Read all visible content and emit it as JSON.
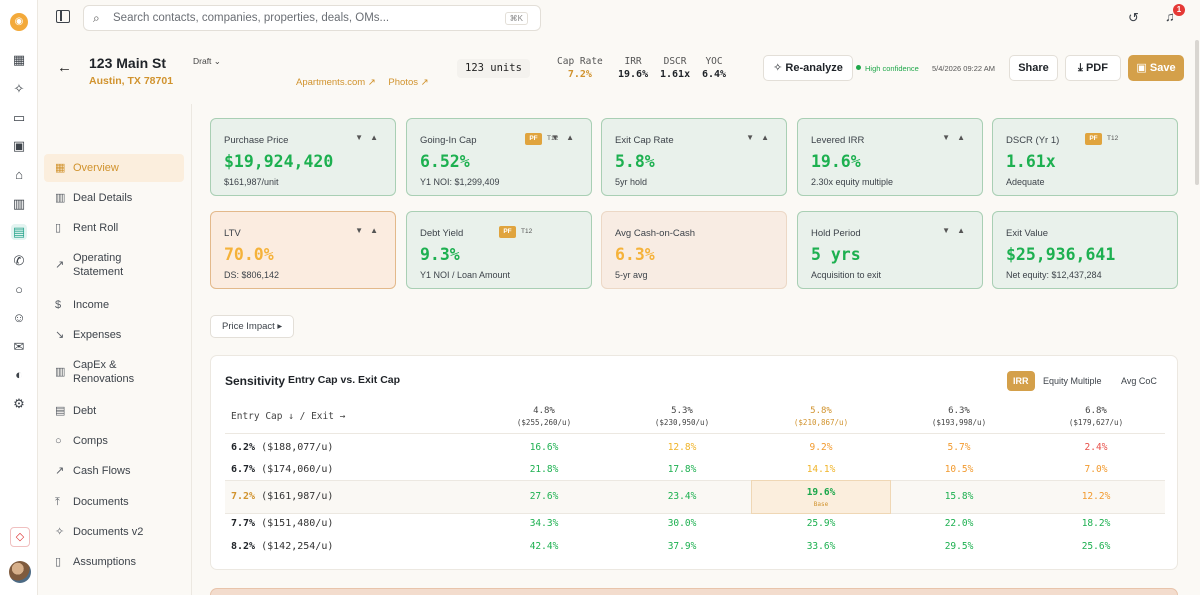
{
  "topbar": {
    "search_placeholder": "Search contacts, companies, properties, deals, OMs...",
    "search_shortcut": "⌘K",
    "notification_count": "1"
  },
  "property": {
    "name": "123 Main St",
    "address": "Austin, TX 78701",
    "status": "Draft",
    "links": [
      "Apartments.com ↗",
      "Photos ↗"
    ],
    "units": "123 units"
  },
  "header_kpis": [
    {
      "label": "Cap Rate",
      "value": "7.2%",
      "accent": true
    },
    {
      "label": "IRR",
      "value": "19.6%",
      "accent": false
    },
    {
      "label": "DSCR",
      "value": "1.61x",
      "accent": false
    },
    {
      "label": "YOC",
      "value": "6.4%",
      "accent": false
    }
  ],
  "actions": {
    "reanalyze": "Re-analyze",
    "confidence": "High confidence",
    "timestamp": "5/4/2026 09:22 AM",
    "share": "Share",
    "pdf": "PDF",
    "save": "Save"
  },
  "nav": [
    {
      "label": "Overview",
      "icon": "grid-icon",
      "active": true
    },
    {
      "label": "Deal Details",
      "icon": "building-icon"
    },
    {
      "label": "Rent Roll",
      "icon": "bar-chart-icon"
    },
    {
      "label": "Operating Statement",
      "icon": "trend-up-icon"
    },
    {
      "label": "Income",
      "icon": "dollar-icon"
    },
    {
      "label": "Expenses",
      "icon": "trend-down-icon"
    },
    {
      "label": "CapEx & Renovations",
      "icon": "building-icon"
    },
    {
      "label": "Debt",
      "icon": "bank-icon"
    },
    {
      "label": "Comps",
      "icon": "search-icon"
    },
    {
      "label": "Cash Flows",
      "icon": "trend-up-icon"
    },
    {
      "label": "Documents",
      "icon": "upload-icon"
    },
    {
      "label": "Documents v2",
      "icon": "sparkle-icon"
    },
    {
      "label": "Assumptions",
      "icon": "document-icon"
    }
  ],
  "cards": [
    {
      "label": "Purchase Price",
      "value": "$19,924,420",
      "sub": "$161,987/unit",
      "arrows": true,
      "pf": false,
      "tone": "green"
    },
    {
      "label": "Going-In Cap",
      "value": "6.52%",
      "sub": "Y1 NOI: $1,299,409",
      "arrows": true,
      "pf": true,
      "tone": "green"
    },
    {
      "label": "Exit Cap Rate",
      "value": "5.8%",
      "sub": "5yr hold",
      "arrows": true,
      "pf": false,
      "tone": "green"
    },
    {
      "label": "Levered IRR",
      "value": "19.6%",
      "sub": "2.30x equity multiple",
      "arrows": true,
      "pf": false,
      "tone": "green"
    },
    {
      "label": "DSCR (Yr 1)",
      "value": "1.61x",
      "sub": "Adequate",
      "arrows": false,
      "pf": true,
      "tone": "green"
    },
    {
      "label": "LTV",
      "value": "70.0%",
      "sub": "DS: $806,142",
      "arrows": true,
      "pf": false,
      "tone": "warn"
    },
    {
      "label": "Debt Yield",
      "value": "9.3%",
      "sub": "Y1 NOI / Loan Amount",
      "arrows": false,
      "pf": true,
      "tone": "green"
    },
    {
      "label": "Avg Cash-on-Cash",
      "value": "6.3%",
      "sub": "5-yr avg",
      "arrows": false,
      "pf": false,
      "tone": "peach"
    },
    {
      "label": "Hold Period",
      "value": "5 yrs",
      "sub": "Acquisition to exit",
      "arrows": true,
      "pf": false,
      "tone": "green"
    },
    {
      "label": "Exit Value",
      "value": "$25,936,641",
      "sub": "Net equity: $12,437,284",
      "arrows": false,
      "pf": false,
      "tone": "green"
    }
  ],
  "badges": {
    "pf": "PF",
    "t12": "T12"
  },
  "price_impact": "Price Impact ▸",
  "sensitivity": {
    "title": "Sensitivity",
    "subtitle": "Entry Cap vs. Exit Cap",
    "tabs": [
      "IRR",
      "Equity Multiple",
      "Avg CoC"
    ],
    "row_header": "Entry Cap ↓ / Exit →",
    "columns": [
      {
        "cap": "4.8%",
        "per_unit": "($255,260/u)"
      },
      {
        "cap": "5.3%",
        "per_unit": "($230,950/u)"
      },
      {
        "cap": "5.8%",
        "per_unit": "($210,867/u)"
      },
      {
        "cap": "6.3%",
        "per_unit": "($193,998/u)"
      },
      {
        "cap": "6.8%",
        "per_unit": "($179,627/u)"
      }
    ],
    "rows": [
      {
        "cap": "6.2%",
        "per_unit": "($188,077/u)",
        "values": [
          "16.6%",
          "12.8%",
          "9.2%",
          "5.7%",
          "2.4%"
        ]
      },
      {
        "cap": "6.7%",
        "per_unit": "($174,060/u)",
        "values": [
          "21.8%",
          "17.8%",
          "14.1%",
          "10.5%",
          "7.0%"
        ]
      },
      {
        "cap": "7.2%",
        "per_unit": "($161,987/u)",
        "values": [
          "27.6%",
          "23.4%",
          "19.6%",
          "15.8%",
          "12.2%"
        ]
      },
      {
        "cap": "7.7%",
        "per_unit": "($151,480/u)",
        "values": [
          "34.3%",
          "30.0%",
          "25.9%",
          "22.0%",
          "18.2%"
        ]
      },
      {
        "cap": "8.2%",
        "per_unit": "($142,254/u)",
        "values": [
          "42.4%",
          "37.9%",
          "33.6%",
          "29.5%",
          "25.6%"
        ]
      }
    ],
    "base_label": "Base",
    "colors": {
      "high": "#1db050",
      "mid": "#1fa74a",
      "warn": "#f0b429",
      "orange": "#f29a2e",
      "low": "#e8504a"
    }
  }
}
